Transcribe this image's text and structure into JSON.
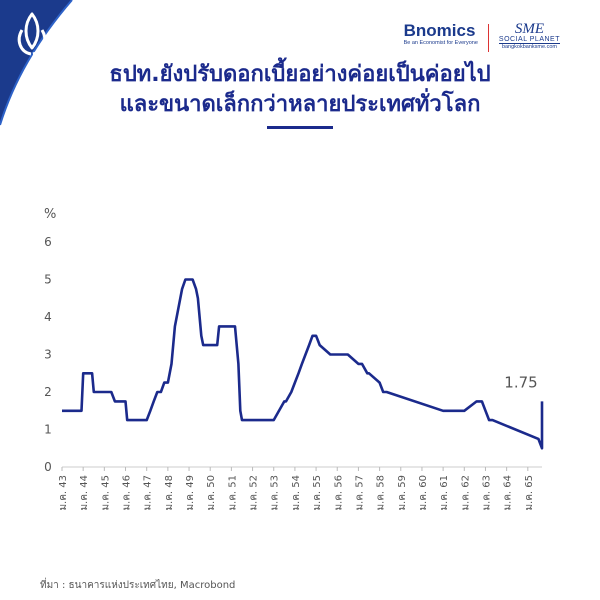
{
  "brand": {
    "name": "Bnomics",
    "tagline": "Be an Economist for Everyone",
    "partner_main": "SME",
    "partner_sub": "SOCIAL PLANET",
    "partner_url": "bangkokbanksme.com"
  },
  "title_line1": "ธปท.ยังปรับดอกเบี้ยอย่างค่อยเป็นค่อยไป",
  "title_line2": "และขนาดเล็กกว่าหลายประเทศทั่วโลก",
  "source": "ที่มา : ธนาคารแห่งประเทศไทย, Macrobond",
  "colors": {
    "line": "#1b2a8c",
    "title": "#1b2a8c",
    "corner": "#1b3a8c"
  },
  "icons": [
    "lotus-logo-icon"
  ],
  "chart_data": {
    "type": "line",
    "title": "",
    "xlabel": "",
    "ylabel": "%",
    "ylim": [
      0,
      6
    ],
    "yticks": [
      "0",
      "1",
      "2",
      "3",
      "4",
      "5",
      "6"
    ],
    "xlim": [
      2000,
      2022.67
    ],
    "xtick_labels": [
      "ม.ค. 43",
      "ม.ค. 44",
      "ม.ค. 45",
      "ม.ค. 46",
      "ม.ค. 47",
      "ม.ค. 48",
      "ม.ค. 49",
      "ม.ค. 50",
      "ม.ค. 51",
      "ม.ค. 52",
      "ม.ค. 53",
      "ม.ค. 54",
      "ม.ค. 55",
      "ม.ค. 56",
      "ม.ค. 57",
      "ม.ค. 58",
      "ม.ค. 59",
      "ม.ค. 60",
      "ม.ค. 61",
      "ม.ค. 62",
      "ม.ค. 63",
      "ม.ค. 64",
      "ม.ค. 65"
    ],
    "xtick_values": [
      2000,
      2001,
      2002,
      2003,
      2004,
      2005,
      2006,
      2007,
      2008,
      2009,
      2010,
      2011,
      2012,
      2013,
      2014,
      2015,
      2016,
      2017,
      2018,
      2019,
      2020,
      2021,
      2022
    ],
    "grid": false,
    "annotation": {
      "text": "1.75"
    },
    "series": [
      {
        "x": [
          2000,
          2000.92,
          2001.0,
          2001.42,
          2001.5,
          2002.0,
          2002.33,
          2002.5,
          2003.0,
          2003.08,
          2003.92,
          2004.0,
          2004.17,
          2004.33,
          2004.5,
          2004.67,
          2004.83,
          2005.0,
          2005.17,
          2005.33,
          2005.5,
          2005.67,
          2005.83,
          2006.0,
          2006.17,
          2006.33,
          2006.42,
          2006.58,
          2006.67,
          2006.92,
          2007.0,
          2007.08,
          2007.17,
          2007.33,
          2007.42,
          2008.0,
          2008.17,
          2008.33,
          2008.42,
          2008.5,
          2008.92,
          2009.0,
          2009.08,
          2009.17,
          2010.0,
          2010.5,
          2010.58,
          2010.83,
          2011.0,
          2011.17,
          2011.33,
          2011.5,
          2011.67,
          2011.83,
          2012.0,
          2012.17,
          2012.67,
          2012.83,
          2013.33,
          2013.5,
          2014.0,
          2014.17,
          2014.42,
          2014.5,
          2015.0,
          2015.17,
          2015.33,
          2018.0,
          2018.92,
          2019.0,
          2019.58,
          2019.67,
          2019.83,
          2020.0,
          2020.17,
          2020.33,
          2022.5,
          2022.67,
          2022.75,
          2022.83,
          2022.92,
          2023.0
        ],
        "values": [
          1.5,
          1.5,
          2.5,
          2.5,
          2.0,
          2.0,
          2.0,
          1.75,
          1.75,
          1.25,
          1.25,
          1.25,
          1.5,
          1.75,
          2.0,
          2.0,
          2.25,
          2.25,
          2.75,
          3.75,
          4.25,
          4.75,
          5.0,
          5.0,
          5.0,
          4.75,
          4.5,
          3.5,
          3.25,
          3.25,
          3.25,
          3.25,
          3.25,
          3.25,
          3.75,
          3.75,
          3.75,
          2.75,
          1.5,
          1.25,
          1.25,
          1.25,
          1.25,
          1.25,
          1.25,
          1.75,
          1.75,
          2.0,
          2.25,
          2.5,
          2.75,
          3.0,
          3.25,
          3.5,
          3.5,
          3.25,
          3.0,
          3.0,
          3.0,
          3.0,
          2.75,
          2.75,
          2.5,
          2.5,
          2.25,
          2.0,
          2.0,
          1.5,
          1.5,
          1.5,
          1.75,
          1.75,
          1.75,
          1.5,
          1.25,
          1.25,
          0.75,
          0.5,
          0.5,
          0.5,
          1.25,
          1.75
        ]
      }
    ]
  }
}
